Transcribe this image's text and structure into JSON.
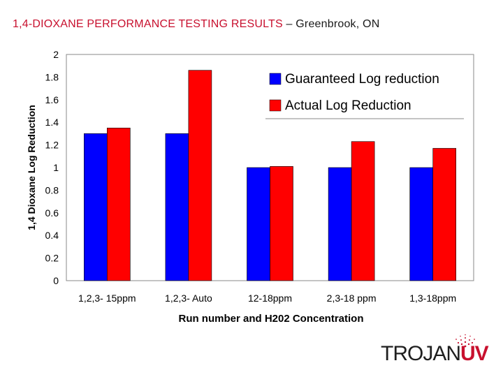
{
  "title": {
    "main": "1,4-DIOXANE PERFORMANCE TESTING RESULTS",
    "dash": "–",
    "location": "Greenbrook, ON"
  },
  "logo": {
    "text_a": "TROJAN",
    "text_b": "UV"
  },
  "colors": {
    "guaranteed": "#0000ff",
    "actual": "#ff0000",
    "title_red": "#c8102e"
  },
  "chart_data": {
    "type": "bar",
    "categories": [
      "1,2,3- 15ppm",
      "1,2,3- Auto",
      "12-18ppm",
      "2,3-18 ppm",
      "1,3-18ppm"
    ],
    "series": [
      {
        "name": "Guaranteed Log reduction",
        "values": [
          1.3,
          1.3,
          1.0,
          1.0,
          1.0
        ]
      },
      {
        "name": "Actual Log Reduction",
        "values": [
          1.35,
          1.86,
          1.01,
          1.23,
          1.17
        ]
      }
    ],
    "xlabel": "Run number and H202 Concentration",
    "ylabel": "1,4 Dioxane Log Reduction",
    "ylim": [
      0,
      2
    ],
    "yticks": [
      "0",
      "0.2",
      "0.4",
      "0.6",
      "0.8",
      "1",
      "1.2",
      "1.4",
      "1.6",
      "1.8",
      "2"
    ],
    "grid": false,
    "legend_position": "top-right"
  }
}
